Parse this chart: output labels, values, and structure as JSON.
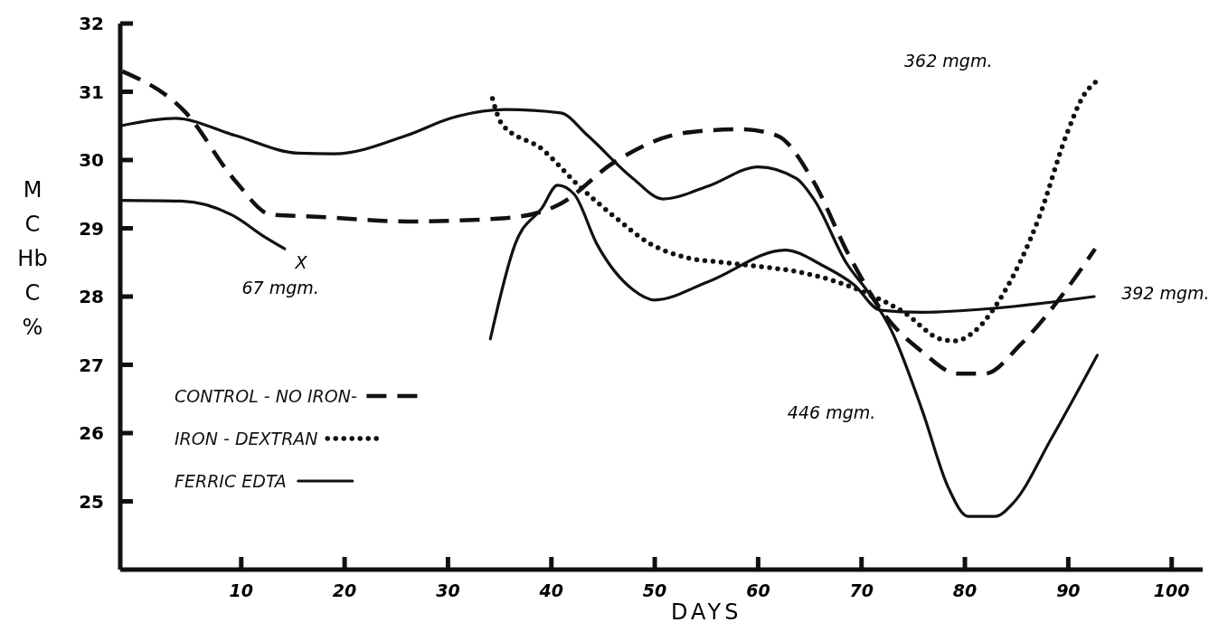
{
  "chart_data": {
    "type": "line",
    "xlabel": "DAYS",
    "ylabel": "M C Hb C %",
    "xlim": [
      -1.7,
      103
    ],
    "xticks": [
      10,
      20,
      30,
      40,
      50,
      60,
      70,
      80,
      90,
      100
    ],
    "ylim": [
      24,
      32
    ],
    "yticks": [
      25,
      26,
      27,
      28,
      29,
      30,
      31,
      32
    ],
    "grid": false,
    "legend": "bottom left",
    "marker": "none",
    "series": [
      {
        "name": "CONTROL - NO IRON-",
        "color": "#111111",
        "line_style": "dashed",
        "x": [
          -1.5,
          4.6,
          9.4,
          12.9,
          17.3,
          26,
          35.6,
          40.9,
          46,
          53,
          58.3,
          61.8,
          65.3,
          68.8,
          72.4,
          75.8,
          79.3,
          81.9,
          85.4,
          89.8,
          92.6
        ],
        "values": [
          31.3,
          30.7,
          29.7,
          29.2,
          29.17,
          29.1,
          29.15,
          29.36,
          29.96,
          30.4,
          30.45,
          30.36,
          29.7,
          28.6,
          27.7,
          27.2,
          26.87,
          26.87,
          27.3,
          28.1,
          28.7
        ]
      },
      {
        "name": "IRON - DEXTRAN",
        "color": "#111111",
        "line_style": "dotted",
        "x": [
          34.3,
          35.2,
          39.1,
          42.6,
          46.1,
          49.6,
          53.1,
          56.6,
          60.1,
          63.6,
          67.1,
          70.6,
          74.1,
          77.6,
          79,
          81,
          83.7,
          87.2,
          89.8,
          91.5,
          92.7
        ],
        "values": [
          30.9,
          30.53,
          30.16,
          29.63,
          29.17,
          28.77,
          28.57,
          28.5,
          28.44,
          28.37,
          28.24,
          28.04,
          27.77,
          27.38,
          27.35,
          27.5,
          28.04,
          29.17,
          30.36,
          30.95,
          31.15
        ]
      },
      {
        "name": "FERRIC EDTA",
        "color": "#111111",
        "line_style": "solid",
        "x": [
          -1.7,
          3.6,
          9.4,
          15.5,
          19,
          26,
          30.4,
          35.6,
          40.9,
          43.5,
          47.9,
          50.8,
          55.2,
          60,
          63.7,
          65.5,
          68.5,
          70.7,
          72.9,
          75.9,
          78.4,
          80.3,
          82.9,
          84.7,
          88.4,
          92.8
        ],
        "values": [
          30.5,
          30.61,
          30.36,
          30.1,
          30.09,
          30.36,
          30.62,
          30.74,
          30.69,
          30.36,
          29.73,
          29.43,
          29.62,
          29.9,
          29.73,
          29.4,
          28.5,
          28.05,
          27.5,
          26.32,
          25.2,
          24.78,
          24.78,
          24.98,
          25.93,
          27.14
        ]
      },
      {
        "color": "#111111",
        "line_style": "solid",
        "x": [
          34.1,
          36.5,
          39.1,
          40.6,
          42.2,
          44.4,
          47.9,
          50,
          55.2,
          62.6,
          66.3,
          69.3,
          71.8,
          75.9,
          82.9,
          92.5
        ],
        "values": [
          27.38,
          28.77,
          29.3,
          29.63,
          29.5,
          28.77,
          28.1,
          27.95,
          28.22,
          28.68,
          28.45,
          28.17,
          27.8,
          27.77,
          27.83,
          28.0
        ]
      },
      {
        "color": "#111111",
        "line_style": "solid",
        "x": [
          -1.7,
          4.2,
          9.4,
          12,
          14.2
        ],
        "values": [
          29.41,
          29.4,
          29.17,
          28.9,
          28.7
        ]
      }
    ],
    "annotations": [
      "X",
      "67 mgm.",
      "362 mgm.",
      "392 mgm.",
      "446 mgm."
    ]
  }
}
